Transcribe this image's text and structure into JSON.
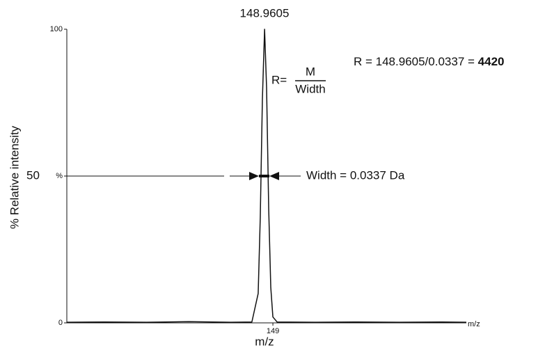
{
  "chart_data": {
    "type": "line",
    "x": [
      148.02,
      148.2,
      148.4,
      148.6,
      148.8,
      148.9,
      148.93,
      148.94,
      148.95,
      148.9605,
      148.97,
      148.98,
      148.99,
      149.0,
      149.02,
      149.2,
      149.4,
      149.6,
      149.8,
      149.92
    ],
    "values": [
      0.2,
      0.3,
      0.2,
      0.4,
      0.2,
      0.3,
      10,
      36,
      76,
      100,
      80,
      39,
      12,
      2,
      0.3,
      0.2,
      0.3,
      0.2,
      0.3,
      0.2
    ],
    "color": "#111111",
    "xlim": [
      148.02,
      149.92
    ],
    "xticks": [
      149
    ],
    "ylim": [
      0,
      100
    ],
    "yticks": [
      0,
      {
        "value": 50,
        "label": "%"
      },
      100
    ],
    "x_axis_label": "m/z",
    "x_axis_end_label": "m/z",
    "y_axis_label": "% Relative intensity",
    "annotations": {
      "peak_label": "148.9605",
      "resolution_formula": "R = 148.9605/0.0337 =",
      "resolution_value": "4420",
      "r_eq": "R=",
      "numerator": "M",
      "denominator": "Width",
      "width_label": "Width = 0.0337 Da",
      "half_label": "50"
    }
  }
}
